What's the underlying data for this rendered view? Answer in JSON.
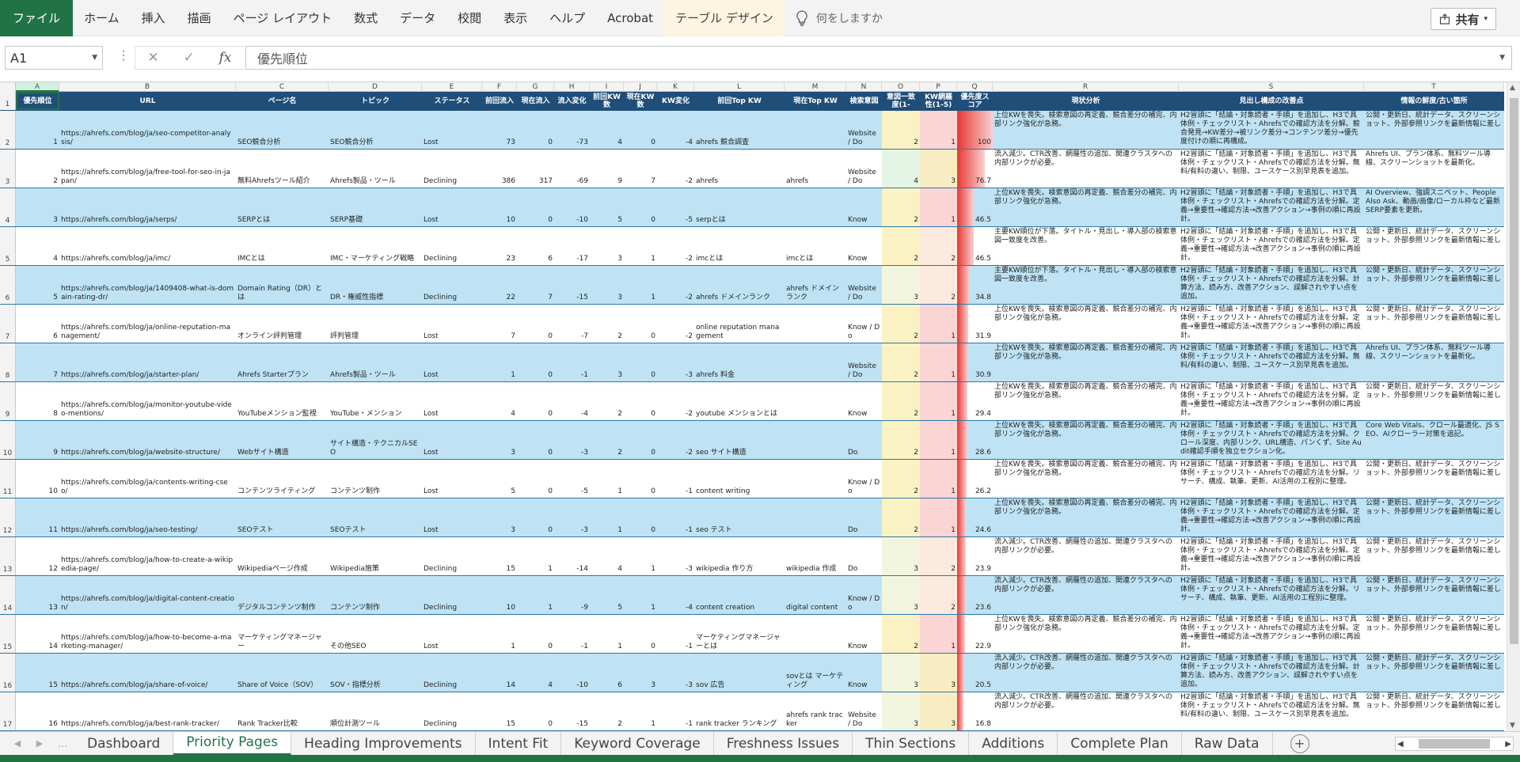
{
  "ribbon": {
    "tabs": [
      "ファイル",
      "ホーム",
      "挿入",
      "描画",
      "ページ レイアウト",
      "数式",
      "データ",
      "校閲",
      "表示",
      "ヘルプ",
      "Acrobat",
      "テーブル デザイン"
    ],
    "tell_me": "何をしますか",
    "share_label": "共有"
  },
  "formula_bar": {
    "name_box": "A1",
    "cancel_glyph": "✕",
    "enter_glyph": "✓",
    "fx_label": "fx",
    "value": "優先順位"
  },
  "columns": {
    "letters": [
      "A",
      "B",
      "C",
      "D",
      "E",
      "F",
      "G",
      "H",
      "I",
      "J",
      "K",
      "L",
      "M",
      "N",
      "O",
      "P",
      "Q",
      "R",
      "S",
      "T"
    ],
    "headers": [
      "優先順位",
      "URL",
      "ページ名",
      "トピック",
      "ステータス",
      "前回流入",
      "現在流入",
      "流入変化",
      "前回KW数",
      "現在KW数",
      "KW変化",
      "前回Top KW",
      "現在Top KW",
      "検索意図",
      "意図一致度(1-",
      "KW網羅性(1-5)",
      "優先度スコア",
      "現状分析",
      "見出し構成の改善点",
      "情報の鮮度/古い箇所"
    ]
  },
  "rows": [
    {
      "rn": "2",
      "c": [
        "1",
        "https://ahrefs.com/blog/ja/seo-competitor-analysis/",
        "SEO競合分析",
        "SEO競合分析",
        "Lost",
        "73",
        "0",
        "-73",
        "4",
        "0",
        "-4",
        "ahrefs 競合調査",
        "",
        "Website / Do",
        "2",
        "1",
        "100",
        "上位KWを喪失。検索意図の再定義、競合差分の補完、内部リンク強化が急務。",
        "H2冒頭に「結論・対象読者・手順」を追加し、H3で具体例・チェックリスト・Ahrefsでの確認方法を分解。競合発見→KW差分→被リンク差分→コンテンツ差分→優先度付けの順に再構成。",
        "公開・更新日、統計データ、スクリーンショット、外部参照リンクを最新情報に差し"
      ]
    },
    {
      "rn": "3",
      "c": [
        "2",
        "https://ahrefs.com/blog/ja/free-tool-for-seo-in-japan/",
        "無料Ahrefsツール紹介",
        "Ahrefs製品・ツール",
        "Declining",
        "386",
        "317",
        "-69",
        "9",
        "7",
        "-2",
        "ahrefs",
        "ahrefs",
        "Website / Do",
        "4",
        "3",
        "76.7",
        "流入減少。CTR改善、網羅性の追加、関連クラスタへの内部リンクが必要。",
        "H2冒頭に「結論・対象読者・手順」を追加し、H3で具体例・チェックリスト・Ahrefsでの確認方法を分解。無料/有料の違い、制限、ユースケース別早見表を追加。",
        "Ahrefs UI、プラン体系、無料ツール導線、スクリーンショットを最新化。"
      ]
    },
    {
      "rn": "4",
      "c": [
        "3",
        "https://ahrefs.com/blog/ja/serps/",
        "SERPとは",
        "SERP基礎",
        "Lost",
        "10",
        "0",
        "-10",
        "5",
        "0",
        "-5",
        "serpとは",
        "",
        "Know",
        "2",
        "1",
        "46.5",
        "上位KWを喪失。検索意図の再定義、競合差分の補完、内部リンク強化が急務。",
        "H2冒頭に「結論・対象読者・手順」を追加し、H3で具体例・チェックリスト・Ahrefsでの確認方法を分解。定義→重要性→確認方法→改善アクション→事例の順に再設計。",
        "AI Overview、強調スニペット、People Also Ask、動画/画像/ローカル枠など最新SERP要素を更新。"
      ]
    },
    {
      "rn": "5",
      "c": [
        "4",
        "https://ahrefs.com/blog/ja/imc/",
        "IMCとは",
        "IMC・マーケティング戦略",
        "Declining",
        "23",
        "6",
        "-17",
        "3",
        "1",
        "-2",
        "imcとは",
        "imcとは",
        "Know",
        "2",
        "2",
        "46.5",
        "主要KW順位が下落。タイトル・見出し・導入部の検索意図一致度を改善。",
        "H2冒頭に「結論・対象読者・手順」を追加し、H3で具体例・チェックリスト・Ahrefsでの確認方法を分解。定義→重要性→確認方法→改善アクション→事例の順に再設計。",
        "公開・更新日、統計データ、スクリーンショット、外部参照リンクを最新情報に差し"
      ]
    },
    {
      "rn": "6",
      "c": [
        "5",
        "https://ahrefs.com/blog/ja/1409408-what-is-domain-rating-dr/",
        "Domain Rating（DR）とは",
        "DR・権威性指標",
        "Declining",
        "22",
        "7",
        "-15",
        "3",
        "1",
        "-2",
        "ahrefs ドメインランク",
        "ahrefs ドメインランク",
        "Website / Do",
        "3",
        "2",
        "34.8",
        "主要KW順位が下落。タイトル・見出し・導入部の検索意図一致度を改善。",
        "H2冒頭に「結論・対象読者・手順」を追加し、H3で具体例・チェックリスト・Ahrefsでの確認方法を分解。計算方法、読み方、改善アクション、誤解されやすい点を追加。",
        "公開・更新日、統計データ、スクリーンショット、外部参照リンクを最新情報に差し"
      ]
    },
    {
      "rn": "7",
      "c": [
        "6",
        "https://ahrefs.com/blog/ja/online-reputation-management/",
        "オンライン評判管理",
        "評判管理",
        "Lost",
        "7",
        "0",
        "-7",
        "2",
        "0",
        "-2",
        "online reputation management",
        "",
        "Know / Do",
        "2",
        "1",
        "31.9",
        "上位KWを喪失。検索意図の再定義、競合差分の補完、内部リンク強化が急務。",
        "H2冒頭に「結論・対象読者・手順」を追加し、H3で具体例・チェックリスト・Ahrefsでの確認方法を分解。定義→重要性→確認方法→改善アクション→事例の順に再設計。",
        "公開・更新日、統計データ、スクリーンショット、外部参照リンクを最新情報に差し"
      ]
    },
    {
      "rn": "8",
      "c": [
        "7",
        "https://ahrefs.com/blog/ja/starter-plan/",
        "Ahrefs Starterプラン",
        "Ahrefs製品・ツール",
        "Lost",
        "1",
        "0",
        "-1",
        "3",
        "0",
        "-3",
        "ahrefs 料金",
        "",
        "Website / Do",
        "2",
        "1",
        "30.9",
        "上位KWを喪失。検索意図の再定義、競合差分の補完、内部リンク強化が急務。",
        "H2冒頭に「結論・対象読者・手順」を追加し、H3で具体例・チェックリスト・Ahrefsでの確認方法を分解。無料/有料の違い、制限、ユースケース別早見表を追加。",
        "Ahrefs UI、プラン体系、無料ツール導線、スクリーンショットを最新化。"
      ]
    },
    {
      "rn": "9",
      "c": [
        "8",
        "https://ahrefs.com/blog/ja/monitor-youtube-video-mentions/",
        "YouTubeメンション監視",
        "YouTube・メンション",
        "Lost",
        "4",
        "0",
        "-4",
        "2",
        "0",
        "-2",
        "youtube メンションとは",
        "",
        "Know",
        "2",
        "1",
        "29.4",
        "上位KWを喪失。検索意図の再定義、競合差分の補完、内部リンク強化が急務。",
        "H2冒頭に「結論・対象読者・手順」を追加し、H3で具体例・チェックリスト・Ahrefsでの確認方法を分解。定義→重要性→確認方法→改善アクション→事例の順に再設計。",
        "公開・更新日、統計データ、スクリーンショット、外部参照リンクを最新情報に差し"
      ]
    },
    {
      "rn": "10",
      "c": [
        "9",
        "https://ahrefs.com/blog/ja/website-structure/",
        "Webサイト構造",
        "サイト構造・テクニカルSEO",
        "Lost",
        "3",
        "0",
        "-3",
        "2",
        "0",
        "-2",
        "seo サイト構造",
        "",
        "Do",
        "2",
        "1",
        "28.6",
        "上位KWを喪失。検索意図の再定義、競合差分の補完、内部リンク強化が急務。",
        "H2冒頭に「結論・対象読者・手順」を追加し、H3で具体例・チェックリスト・Ahrefsでの確認方法を分解。クロール深度、内部リンク、URL構造、パンくず、Site Audit確認手順を独立セクション化。",
        "Core Web Vitals、クロール最適化、JS SEO、AIクローラー対策を追記。"
      ]
    },
    {
      "rn": "11",
      "c": [
        "10",
        "https://ahrefs.com/blog/ja/contents-writing-cseo/",
        "コンテンツライティング",
        "コンテンツ制作",
        "Lost",
        "5",
        "0",
        "-5",
        "1",
        "0",
        "-1",
        "content writing",
        "",
        "Know / Do",
        "2",
        "1",
        "26.2",
        "上位KWを喪失。検索意図の再定義、競合差分の補完、内部リンク強化が急務。",
        "H2冒頭に「結論・対象読者・手順」を追加し、H3で具体例・チェックリスト・Ahrefsでの確認方法を分解。リサーチ、構成、執筆、更新、AI活用の工程別に整理。",
        "公開・更新日、統計データ、スクリーンショット、外部参照リンクを最新情報に差し"
      ]
    },
    {
      "rn": "12",
      "c": [
        "11",
        "https://ahrefs.com/blog/ja/seo-testing/",
        "SEOテスト",
        "SEOテスト",
        "Lost",
        "3",
        "0",
        "-3",
        "1",
        "0",
        "-1",
        "seo テスト",
        "",
        "Do",
        "2",
        "1",
        "24.6",
        "上位KWを喪失。検索意図の再定義、競合差分の補完、内部リンク強化が急務。",
        "H2冒頭に「結論・対象読者・手順」を追加し、H3で具体例・チェックリスト・Ahrefsでの確認方法を分解。定義→重要性→確認方法→改善アクション→事例の順に再設計。",
        "公開・更新日、統計データ、スクリーンショット、外部参照リンクを最新情報に差し"
      ]
    },
    {
      "rn": "13",
      "c": [
        "12",
        "https://ahrefs.com/blog/ja/how-to-create-a-wikipedia-page/",
        "Wikipediaページ作成",
        "Wikipedia施策",
        "Declining",
        "15",
        "1",
        "-14",
        "4",
        "1",
        "-3",
        "wikipedia 作り方",
        "wikipedia 作成",
        "Do",
        "3",
        "2",
        "23.9",
        "流入減少。CTR改善、網羅性の追加、関連クラスタへの内部リンクが必要。",
        "H2冒頭に「結論・対象読者・手順」を追加し、H3で具体例・チェックリスト・Ahrefsでの確認方法を分解。定義→重要性→確認方法→改善アクション→事例の順に再設計。",
        "公開・更新日、統計データ、スクリーンショット、外部参照リンクを最新情報に差し"
      ]
    },
    {
      "rn": "14",
      "c": [
        "13",
        "https://ahrefs.com/blog/ja/digital-content-creation/",
        "デジタルコンテンツ制作",
        "コンテンツ制作",
        "Declining",
        "10",
        "1",
        "-9",
        "5",
        "1",
        "-4",
        "content creation",
        "digital content",
        "Know / Do",
        "3",
        "2",
        "23.6",
        "流入減少。CTR改善、網羅性の追加、関連クラスタへの内部リンクが必要。",
        "H2冒頭に「結論・対象読者・手順」を追加し、H3で具体例・チェックリスト・Ahrefsでの確認方法を分解。リサーチ、構成、執筆、更新、AI活用の工程別に整理。",
        "公開・更新日、統計データ、スクリーンショット、外部参照リンクを最新情報に差し"
      ]
    },
    {
      "rn": "15",
      "c": [
        "14",
        "https://ahrefs.com/blog/ja/how-to-become-a-marketing-manager/",
        "マーケティングマネージャー",
        "その他SEO",
        "Lost",
        "1",
        "0",
        "-1",
        "1",
        "0",
        "-1",
        "マーケティングマネージャーとは",
        "",
        "Know",
        "2",
        "1",
        "22.9",
        "上位KWを喪失。検索意図の再定義、競合差分の補完、内部リンク強化が急務。",
        "H2冒頭に「結論・対象読者・手順」を追加し、H3で具体例・チェックリスト・Ahrefsでの確認方法を分解。定義→重要性→確認方法→改善アクション→事例の順に再設計。",
        "公開・更新日、統計データ、スクリーンショット、外部参照リンクを最新情報に差し"
      ]
    },
    {
      "rn": "16",
      "c": [
        "15",
        "https://ahrefs.com/blog/ja/share-of-voice/",
        "Share of Voice（SOV）",
        "SOV・指標分析",
        "Declining",
        "14",
        "4",
        "-10",
        "6",
        "3",
        "-3",
        "sov 広告",
        "sovとは マーケティング",
        "Know",
        "3",
        "3",
        "20.5",
        "流入減少。CTR改善、網羅性の追加、関連クラスタへの内部リンクが必要。",
        "H2冒頭に「結論・対象読者・手順」を追加し、H3で具体例・チェックリスト・Ahrefsでの確認方法を分解。計算方法、読み方、改善アクション、誤解されやすい点を追加。",
        "公開・更新日、統計データ、スクリーンショット、外部参照リンクを最新情報に差し"
      ]
    },
    {
      "rn": "17",
      "c": [
        "16",
        "https://ahrefs.com/blog/ja/best-rank-tracker/",
        "Rank Tracker比較",
        "順位計測ツール",
        "Declining",
        "15",
        "0",
        "-15",
        "2",
        "1",
        "-1",
        "rank tracker ランキング",
        "ahrefs rank tracker",
        "Website / Do",
        "3",
        "3",
        "16.8",
        "流入減少。CTR改善、網羅性の追加、関連クラスタへの内部リンクが必要。",
        "H2冒頭に「結論・対象読者・手順」を追加し、H3で具体例・チェックリスト・Ahrefsでの確認方法を分解。無料/有料の違い、制限、ユースケース別早見表を追加。",
        "公開・更新日、統計データ、スクリーンショット、外部参照リンクを最新情報に差し"
      ]
    }
  ],
  "sheet_tabs": [
    "Dashboard",
    "Priority Pages",
    "Heading Improvements",
    "Intent Fit",
    "Keyword Coverage",
    "Freshness Issues",
    "Thin Sections",
    "Additions",
    "Complete Plan",
    "Raw Data"
  ],
  "active_sheet": "Priority Pages",
  "colors": {
    "excel_green": "#217346",
    "header_navy": "#1f4e79",
    "band_blue": "#bfe3f4",
    "intent_yellow": "#fbf2c4",
    "coverage_red": "#fbd4d4",
    "score_red": "#e53935"
  },
  "icons": {
    "tell_me": "lightbulb-icon",
    "share": "share-icon",
    "add_sheet": "plus-circle-icon"
  }
}
